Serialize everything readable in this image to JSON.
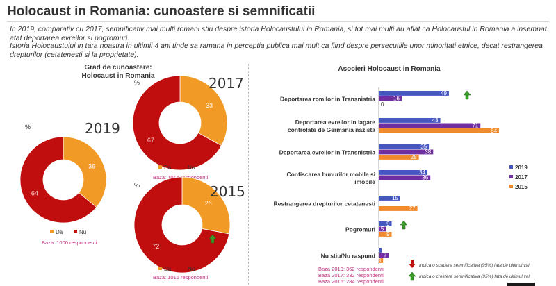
{
  "header": {
    "title": "Holocaust in Romania: cunoastere si semnificatii",
    "paragraph1": "In 2019, comparativ cu 2017, semnificativ mai multi romani stiu despre istoria Holocaustului in Romania, si tot mai multi au aflat ca Holocaustul in Romania a insemnat atat deportarea evreilor si pogromuri.",
    "paragraph2": "Istoria Holocaustului in tara noastra in ultimii 4 ani tinde sa ramana in perceptia publica mai mult ca fiind despre persecutiile unor minoritati etnice, decat restrangerea drepturilor (cetatenesti si la proprietate)."
  },
  "left_panel": {
    "title_line1": "Grad de cunoastere:",
    "title_line2": "Holocaust in Romania"
  },
  "right_panel": {
    "title": "Asocieri Holocaust in Romania"
  },
  "colors": {
    "da": "#f29a26",
    "nu": "#c00d0e",
    "y2019": "#4658c0",
    "y2017": "#6f2fa0",
    "y2015": "#f08a2c",
    "up_arrow": "#3a9a2a",
    "down_arrow": "#c00d0e",
    "baza": "#c0307f"
  },
  "chart_data": [
    {
      "type": "pie",
      "year_label": "2019",
      "unit_label": "%",
      "slices": [
        {
          "name": "Da",
          "value": 36
        },
        {
          "name": "Nu",
          "value": 64
        }
      ],
      "legend": [
        "Da",
        "Nu"
      ],
      "baza": "Baza: 1000 respondenti"
    },
    {
      "type": "pie",
      "year_label": "2017",
      "unit_label": "%",
      "slices": [
        {
          "name": "Da",
          "value": 33
        },
        {
          "name": "Nu",
          "value": 67
        }
      ],
      "legend": [
        "Da",
        "Nu"
      ],
      "baza": "Baza: 1014 respondenti"
    },
    {
      "type": "pie",
      "year_label": "2015",
      "unit_label": "%",
      "slices": [
        {
          "name": "Da",
          "value": 28
        },
        {
          "name": "Nu",
          "value": 72
        }
      ],
      "legend": [
        "Da",
        "Nu"
      ],
      "baza": "Baza: 1016 respondenti",
      "marker": "up-arrow"
    },
    {
      "type": "bar",
      "orientation": "horizontal",
      "title": "Asocieri Holocaust in Romania",
      "categories": [
        "Deportarea romilor in Transnistria",
        "Deportarea evreilor in lagare controlate de Germania nazista",
        "Deportarea evreilor in Transnistria",
        "Confiscarea bunurilor mobile si imobile",
        "Restrangerea drepturilor cetatenesti",
        "Pogromuri",
        "Nu stiu/Nu raspund"
      ],
      "category_lines": [
        [
          "Deportarea romilor in Transnistria"
        ],
        [
          "Deportarea evreilor in lagare",
          "controlate de Germania nazista"
        ],
        [
          "Deportarea evreilor in Transnistria"
        ],
        [
          "Confiscarea bunurilor mobile si",
          "imobile"
        ],
        [
          "Restrangerea drepturilor cetatenesti"
        ],
        [
          "Pogromuri"
        ],
        [
          "Nu stiu/Nu raspund"
        ]
      ],
      "series": [
        {
          "name": "2019",
          "values": [
            49,
            43,
            35,
            34,
            15,
            9,
            2
          ]
        },
        {
          "name": "2017",
          "values": [
            16,
            71,
            38,
            36,
            null,
            5,
            7
          ]
        },
        {
          "name": "2015",
          "values": [
            0,
            84,
            28,
            null,
            27,
            9,
            3
          ]
        }
      ],
      "xlim": [
        0,
        90
      ],
      "markers": [
        {
          "category": "Deportarea romilor in Transnistria",
          "type": "up"
        },
        {
          "category": "Pogromuri",
          "type": "up"
        }
      ],
      "notes": [
        {
          "type": "down",
          "text": "Indica o scadere semnificativa (95%) fata de ultimul val"
        },
        {
          "type": "up",
          "text": "Indica o crestere semnificativa (95%) fata de ultimul val"
        }
      ],
      "baze": [
        "Baza 2019: 362 respondenti",
        "Baza 2017: 332 respondenti",
        "Baza 2015: 284 respondenti"
      ]
    }
  ]
}
